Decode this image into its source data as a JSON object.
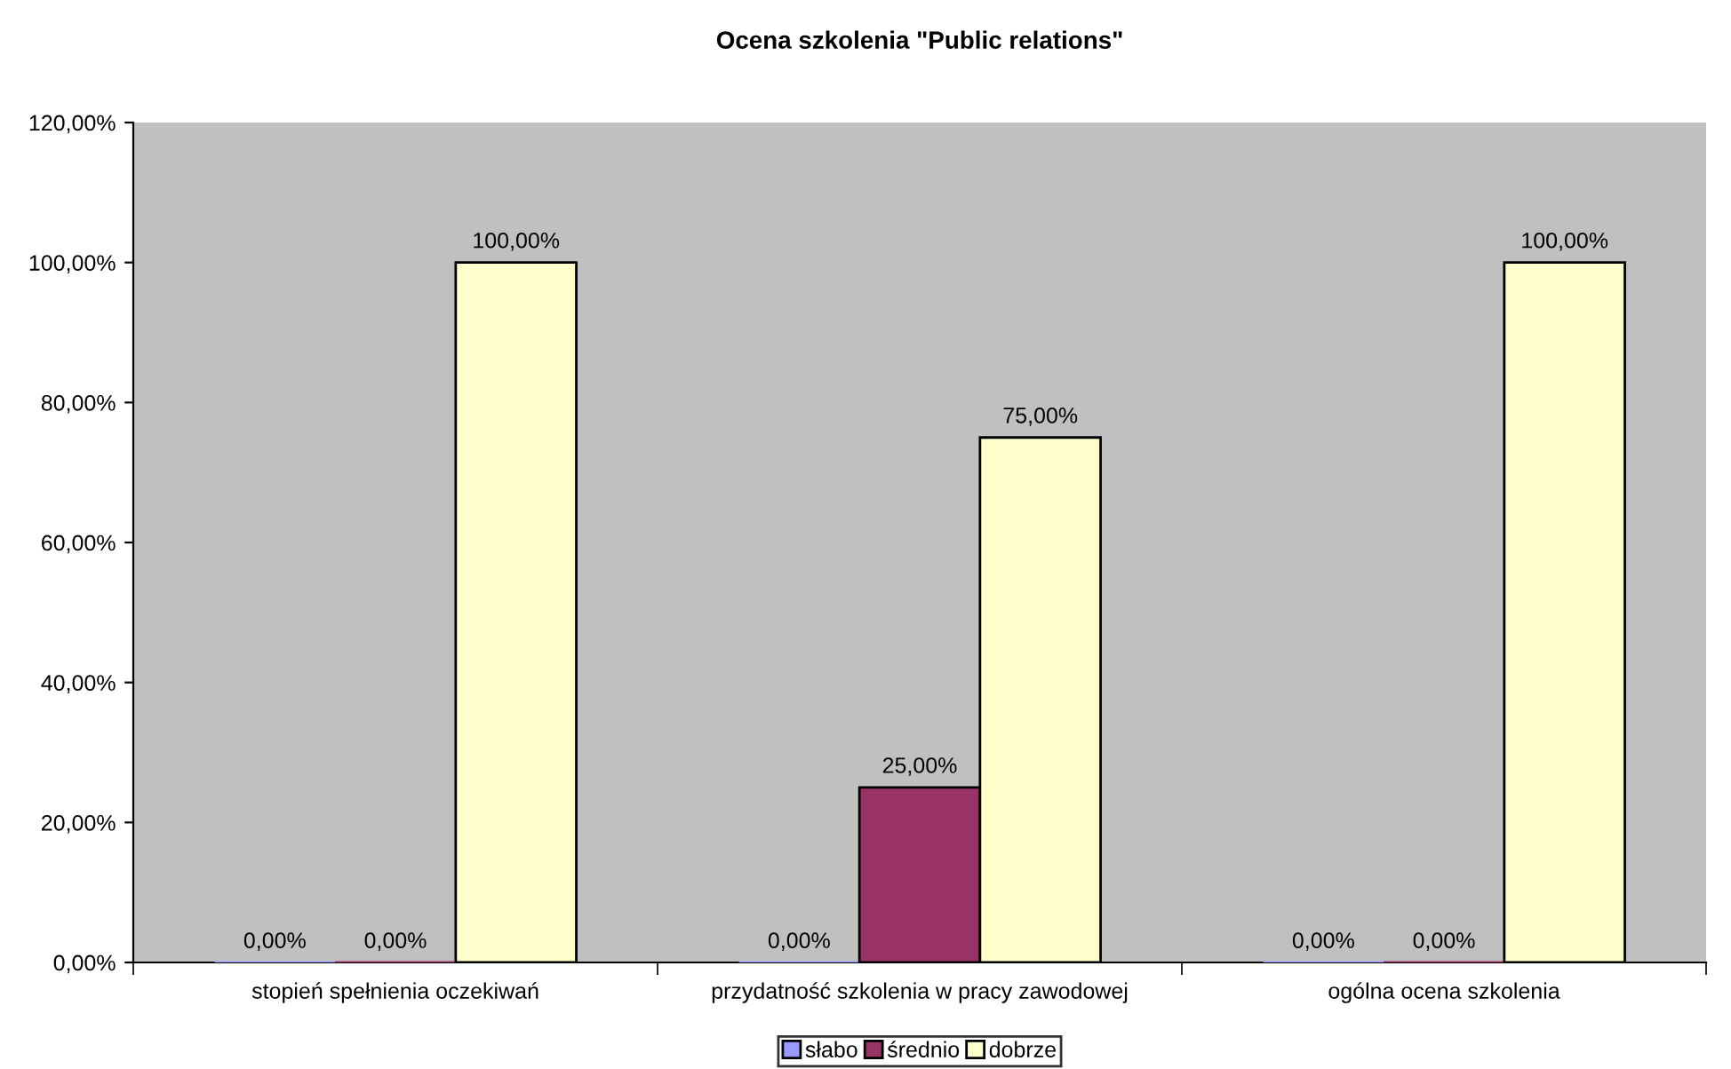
{
  "chart_data": {
    "type": "bar",
    "title": "Ocena szkolenia \"Public relations\"",
    "categories": [
      "stopień spełnienia oczekiwań",
      "przydatność szkolenia w pracy zawodowej",
      "ogólna ocena szkolenia"
    ],
    "series": [
      {
        "name": "słabo",
        "color": "#9999ff",
        "values": [
          0,
          0,
          0
        ],
        "value_labels": [
          "0,00%",
          "0,00%",
          "0,00%"
        ]
      },
      {
        "name": "średnio",
        "color": "#993366",
        "values": [
          0,
          25,
          0
        ],
        "value_labels": [
          "0,00%",
          "25,00%",
          "0,00%"
        ]
      },
      {
        "name": "dobrze",
        "color": "#ffffcc",
        "values": [
          100,
          75,
          100
        ],
        "value_labels": [
          "100,00%",
          "75,00%",
          "100,00%"
        ]
      }
    ],
    "ylim": [
      0,
      120
    ],
    "yticks": [
      {
        "value": 0,
        "label": "0,00%"
      },
      {
        "value": 20,
        "label": "20,00%"
      },
      {
        "value": 40,
        "label": "40,00%"
      },
      {
        "value": 60,
        "label": "60,00%"
      },
      {
        "value": 80,
        "label": "80,00%"
      },
      {
        "value": 100,
        "label": "100,00%"
      },
      {
        "value": 120,
        "label": "120,00%"
      }
    ],
    "grid": false,
    "legend": "bottom"
  }
}
